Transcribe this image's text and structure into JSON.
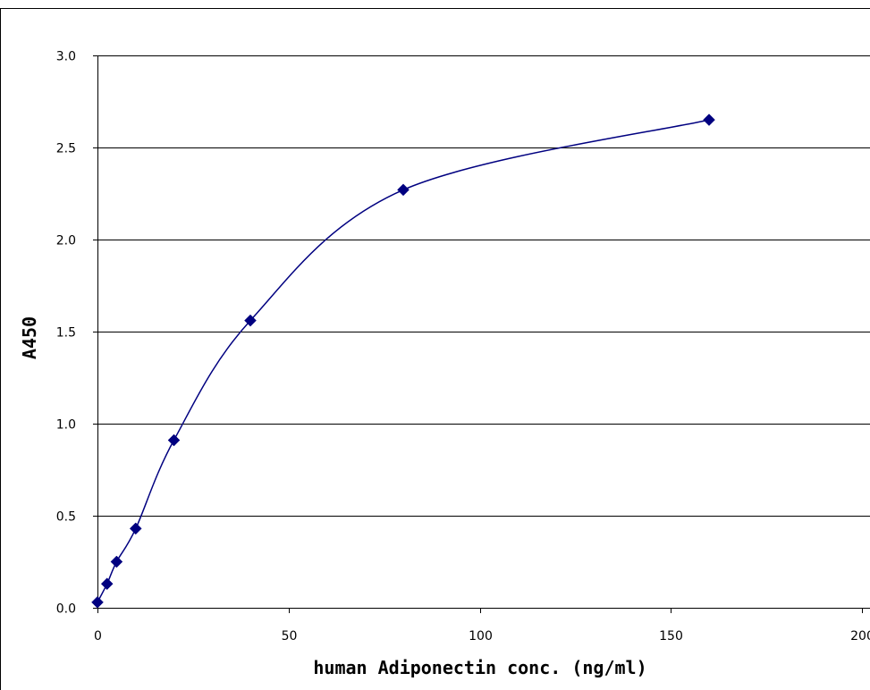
{
  "chart_data": {
    "type": "scatter",
    "title": "",
    "xlabel": "human Adiponectin conc. (ng/ml)",
    "ylabel": "A450",
    "xlim": [
      0,
      200
    ],
    "ylim": [
      0,
      3.0
    ],
    "x_ticks": [
      0,
      50,
      100,
      150,
      200
    ],
    "y_ticks": [
      0.0,
      0.5,
      1.0,
      1.5,
      2.0,
      2.5,
      3.0
    ],
    "x_tick_labels": [
      "0",
      "50",
      "100",
      "150",
      "200"
    ],
    "y_tick_labels": [
      "0.0",
      "0.5",
      "1.0",
      "1.5",
      "2.0",
      "2.5",
      "3.0"
    ],
    "grid": "horizontal",
    "legend": "none",
    "line_style": "smoothed",
    "marker": "diamond",
    "series": [
      {
        "color": "#000080",
        "x": [
          0,
          2.5,
          5,
          10,
          20,
          40,
          80,
          160
        ],
        "y": [
          0.03,
          0.13,
          0.25,
          0.43,
          0.91,
          1.56,
          2.27,
          2.65
        ]
      }
    ]
  }
}
